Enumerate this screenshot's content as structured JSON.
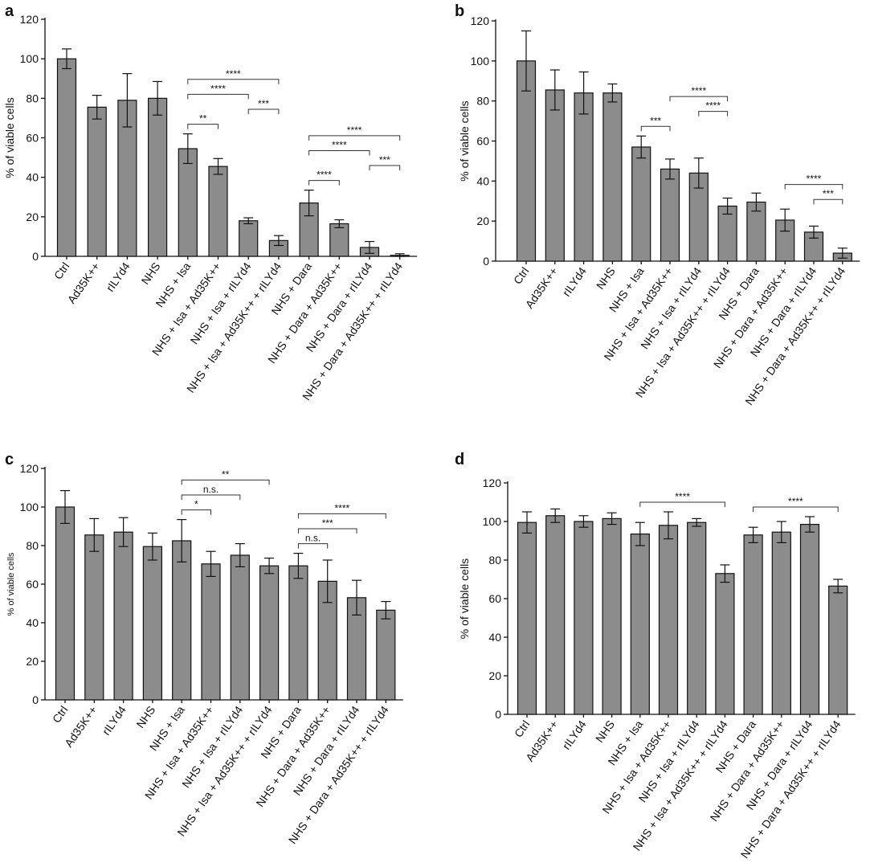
{
  "chart_data": [
    {
      "type": "bar",
      "panel": "a",
      "ylabel": "% of viable cells",
      "ylim": [
        0,
        120
      ],
      "yticks": [
        0,
        20,
        40,
        60,
        80,
        100,
        120
      ],
      "categories": [
        "Ctrl",
        "Ad35K++",
        "rILYd4",
        "NHS",
        "NHS + Isa",
        "NHS + Isa + Ad35K++",
        "NHS + Isa + rILYd4",
        "NHS + Isa + Ad35K++ + rILYd4",
        "NHS + Dara",
        "NHS + Dara + Ad35K++",
        "NHS + Dara + rILYd4",
        "NHS + Dara + Ad35K++ + rILYd4"
      ],
      "values": [
        100,
        75.5,
        79,
        80,
        54.5,
        45.5,
        18,
        8,
        27,
        16.5,
        4.5,
        0.5
      ],
      "errors": [
        5,
        6,
        13.5,
        8.5,
        7.5,
        4,
        1.5,
        2.5,
        6.5,
        2,
        3,
        0.8
      ],
      "significance": [
        {
          "from": 4,
          "to": 5,
          "label": "**"
        },
        {
          "from": 4,
          "to": 6,
          "label": "****"
        },
        {
          "from": 4,
          "to": 7,
          "label": "****"
        },
        {
          "from": 6,
          "to": 7,
          "label": "***"
        },
        {
          "from": 8,
          "to": 9,
          "label": "****"
        },
        {
          "from": 8,
          "to": 10,
          "label": "****"
        },
        {
          "from": 8,
          "to": 11,
          "label": "****"
        },
        {
          "from": 10,
          "to": 11,
          "label": "***"
        }
      ]
    },
    {
      "type": "bar",
      "panel": "b",
      "ylabel": "% of viable cells",
      "ylim": [
        0,
        120
      ],
      "yticks": [
        0,
        20,
        40,
        60,
        80,
        100,
        120
      ],
      "categories": [
        "Ctrl",
        "Ad35K++",
        "rILYd4",
        "NHS",
        "NHS + Isa",
        "NHS + Isa + Ad35K++",
        "NHS + Isa + rILYd4",
        "NHS + Isa + Ad35K++ + rILYd4",
        "NHS + Dara",
        "NHS + Dara + Ad35K++",
        "NHS + Dara + rILYd4",
        "NHS + Dara + Ad35K++ + rILYd4"
      ],
      "values": [
        100,
        85.5,
        84,
        84,
        57,
        46,
        44,
        27.5,
        29.5,
        20.5,
        14.5,
        4
      ],
      "errors": [
        15,
        10,
        10.5,
        4.5,
        5.5,
        5,
        7.5,
        4,
        4.5,
        5.5,
        3,
        2.5
      ],
      "significance": [
        {
          "from": 4,
          "to": 5,
          "label": "***"
        },
        {
          "from": 5,
          "to": 7,
          "label": "****"
        },
        {
          "from": 6,
          "to": 7,
          "label": "****"
        },
        {
          "from": 9,
          "to": 11,
          "label": "****"
        },
        {
          "from": 10,
          "to": 11,
          "label": "***"
        }
      ]
    },
    {
      "type": "bar",
      "panel": "c",
      "ylabel": "% of viable cells",
      "ylim": [
        0,
        120
      ],
      "yticks": [
        0,
        20,
        40,
        60,
        80,
        100,
        120
      ],
      "categories": [
        "Ctrl",
        "Ad35K++",
        "rILYd4",
        "NHS",
        "NHS + Isa",
        "NHS + Isa + Ad35K++",
        "NHS + Isa + rILYd4",
        "NHS + Isa + Ad35K++ + rILYd4",
        "NHS + Dara",
        "NHS + Dara + Ad35K++",
        "NHS + Dara + rILYd4",
        "NHS + Dara + Ad35K++ + rILYd4"
      ],
      "values": [
        100,
        85.5,
        87,
        79.5,
        82.5,
        70.5,
        75,
        69.5,
        69.5,
        61.5,
        53,
        46.5
      ],
      "errors": [
        8.5,
        8.5,
        7.5,
        7,
        11,
        6.5,
        6,
        4,
        6.5,
        11,
        9,
        4.5
      ],
      "significance": [
        {
          "from": 4,
          "to": 5,
          "label": "*"
        },
        {
          "from": 4,
          "to": 6,
          "label": "n.s."
        },
        {
          "from": 4,
          "to": 7,
          "label": "**"
        },
        {
          "from": 8,
          "to": 9,
          "label": "n.s."
        },
        {
          "from": 8,
          "to": 10,
          "label": "***"
        },
        {
          "from": 8,
          "to": 11,
          "label": "****"
        }
      ]
    },
    {
      "type": "bar",
      "panel": "d",
      "ylabel": "% of viable cells",
      "ylim": [
        0,
        120
      ],
      "yticks": [
        0,
        20,
        40,
        60,
        80,
        100,
        120
      ],
      "categories": [
        "Ctrl",
        "Ad35K++",
        "rILYd4",
        "NHS",
        "NHS + Isa",
        "NHS + Isa + Ad35K++",
        "NHS + Isa + rILYd4",
        "NHS + Isa + Ad35K++ + rILYd4",
        "NHS + Dara",
        "NHS + Dara + Ad35K++",
        "NHS + Dara + rILYd4",
        "NHS + Dara + Ad35K++ + rILYd4"
      ],
      "values": [
        99.5,
        103,
        100,
        101.5,
        93.5,
        98,
        99.5,
        73,
        93,
        94.5,
        98.5,
        66.5
      ],
      "errors": [
        5.5,
        3.5,
        3,
        3,
        6,
        7,
        2,
        4.5,
        4,
        5.5,
        4,
        3.5
      ],
      "significance": [
        {
          "from": 4,
          "to": 7,
          "label": "****"
        },
        {
          "from": 8,
          "to": 11,
          "label": "****"
        }
      ]
    }
  ]
}
